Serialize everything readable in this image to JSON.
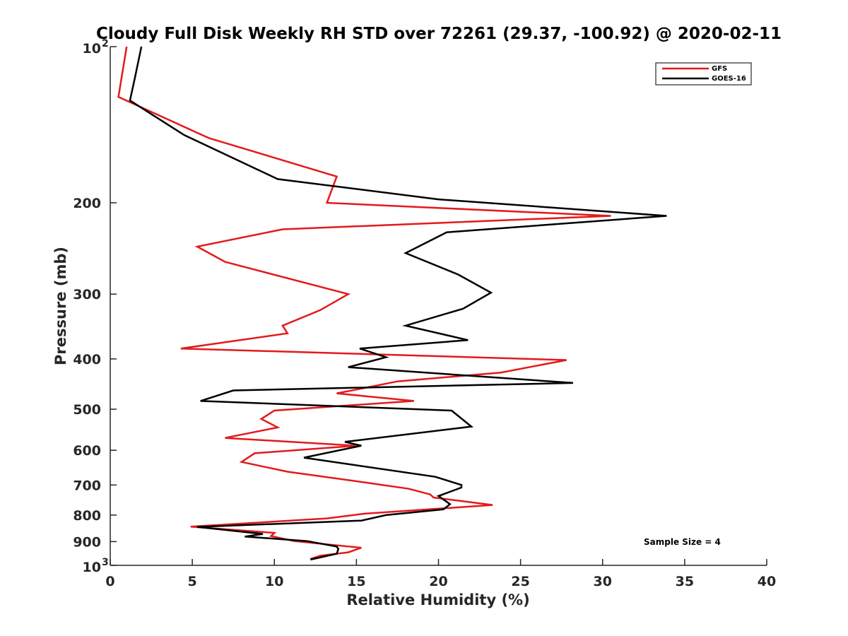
{
  "chart_data": {
    "type": "line",
    "title": "Cloudy Full Disk Weekly RH STD over 72261 (29.37, -100.92) @ 2020-02-11",
    "xlabel": "Relative Humidity (%)",
    "ylabel": "Pressure (mb)",
    "xlim": [
      0,
      40
    ],
    "ylim": [
      100,
      1000
    ],
    "y_scale": "log",
    "y_reversed": true,
    "x_ticks": [
      0,
      5,
      10,
      15,
      20,
      25,
      30,
      35,
      40
    ],
    "y_ticks": [
      {
        "value": 100,
        "base": "10",
        "exp": "2"
      },
      {
        "value": 200,
        "label": "200"
      },
      {
        "value": 300,
        "label": "300"
      },
      {
        "value": 400,
        "label": "400"
      },
      {
        "value": 500,
        "label": "500"
      },
      {
        "value": 600,
        "label": "600"
      },
      {
        "value": 700,
        "label": "700"
      },
      {
        "value": 800,
        "label": "800"
      },
      {
        "value": 900,
        "label": "900"
      },
      {
        "value": 1000,
        "base": "10",
        "exp": "3"
      }
    ],
    "grid": false,
    "legend_position": "top-right",
    "annotation": "Sample Size = 4",
    "series": [
      {
        "name": "GFS",
        "color": "#e31a1c",
        "points": [
          [
            1.0,
            100
          ],
          [
            0.5,
            125
          ],
          [
            6.0,
            150
          ],
          [
            13.8,
            178
          ],
          [
            13.2,
            200
          ],
          [
            30.5,
            212
          ],
          [
            10.5,
            225
          ],
          [
            5.3,
            243
          ],
          [
            7.0,
            260
          ],
          [
            14.5,
            300
          ],
          [
            12.8,
            322
          ],
          [
            10.5,
            345
          ],
          [
            10.8,
            357
          ],
          [
            4.3,
            382
          ],
          [
            27.8,
            402
          ],
          [
            23.8,
            425
          ],
          [
            17.5,
            442
          ],
          [
            15.5,
            455
          ],
          [
            13.8,
            466
          ],
          [
            18.5,
            482
          ],
          [
            10.0,
            503
          ],
          [
            9.2,
            522
          ],
          [
            10.2,
            542
          ],
          [
            7.0,
            568
          ],
          [
            15.0,
            588
          ],
          [
            8.8,
            608
          ],
          [
            8.0,
            632
          ],
          [
            10.8,
            660
          ],
          [
            15.5,
            692
          ],
          [
            18.2,
            712
          ],
          [
            19.5,
            730
          ],
          [
            19.7,
            740
          ],
          [
            23.3,
            765
          ],
          [
            15.5,
            795
          ],
          [
            13.2,
            812
          ],
          [
            4.9,
            842
          ],
          [
            10.0,
            866
          ],
          [
            9.8,
            878
          ],
          [
            11.2,
            898
          ],
          [
            15.3,
            925
          ],
          [
            14.5,
            944
          ],
          [
            12.8,
            958
          ],
          [
            12.2,
            972
          ]
        ]
      },
      {
        "name": "GOES-16",
        "color": "#000000",
        "points": [
          [
            1.9,
            100
          ],
          [
            1.5,
            115
          ],
          [
            1.2,
            127
          ],
          [
            4.5,
            148
          ],
          [
            10.2,
            180
          ],
          [
            20.0,
            197
          ],
          [
            33.9,
            212
          ],
          [
            20.5,
            228
          ],
          [
            18.0,
            250
          ],
          [
            21.2,
            275
          ],
          [
            23.2,
            298
          ],
          [
            21.5,
            320
          ],
          [
            18.0,
            345
          ],
          [
            21.8,
            368
          ],
          [
            15.2,
            382
          ],
          [
            16.8,
            397
          ],
          [
            14.5,
            415
          ],
          [
            28.2,
            445
          ],
          [
            7.5,
            460
          ],
          [
            5.5,
            482
          ],
          [
            20.8,
            503
          ],
          [
            22.0,
            540
          ],
          [
            14.3,
            578
          ],
          [
            15.3,
            588
          ],
          [
            11.8,
            620
          ],
          [
            19.8,
            675
          ],
          [
            21.4,
            700
          ],
          [
            21.4,
            708
          ],
          [
            20.0,
            735
          ],
          [
            20.7,
            762
          ],
          [
            20.3,
            780
          ],
          [
            16.8,
            800
          ],
          [
            15.3,
            820
          ],
          [
            5.3,
            843
          ],
          [
            9.3,
            870
          ],
          [
            8.2,
            880
          ],
          [
            12.0,
            898
          ],
          [
            13.8,
            920
          ],
          [
            13.9,
            930
          ],
          [
            13.8,
            950
          ],
          [
            12.2,
            975
          ]
        ]
      }
    ]
  }
}
